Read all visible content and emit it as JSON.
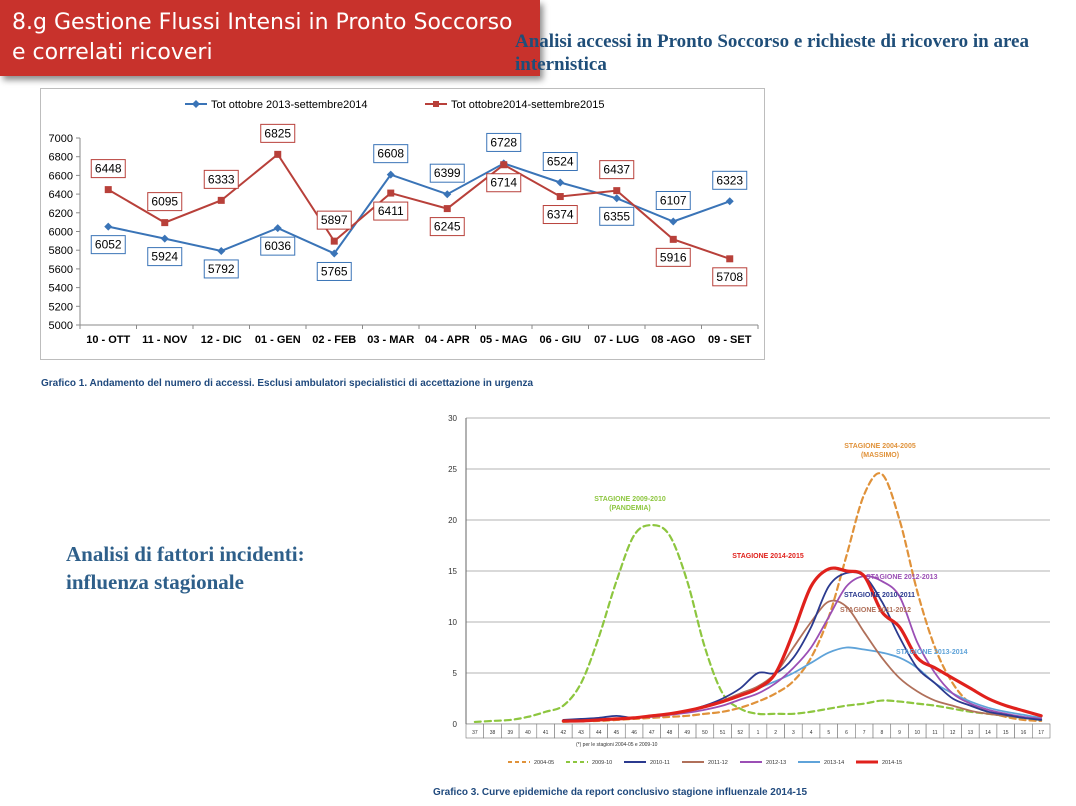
{
  "header": {
    "title_line1": "8.g Gestione Flussi Intensi in Pronto Soccorso",
    "title_line2": "e correlati ricoveri"
  },
  "subtitle": "Analisi accessi in Pronto Soccorso e richieste di ricovero in area internistica",
  "side_text": {
    "line1": "Analisi di fattori incidenti:",
    "line2": "influenza stagionale"
  },
  "chart_data": [
    {
      "type": "line",
      "categories": [
        "10 - OTT",
        "11 - NOV",
        "12 - DIC",
        "01 - GEN",
        "02 - FEB",
        "03 - MAR",
        "04 - APR",
        "05 - MAG",
        "06 - GIU",
        "07 - LUG",
        "08 -AGO",
        "09 - SET"
      ],
      "ylim": [
        5000,
        7000
      ],
      "yticks": [
        5000,
        5200,
        5400,
        5600,
        5800,
        6000,
        6200,
        6400,
        6600,
        6800,
        7000
      ],
      "legend_position": "top",
      "grid": false,
      "series": [
        {
          "name": "Tot ottobre 2013-settembre2014",
          "color": "#3a74b7",
          "marker": "diamond",
          "values": [
            6052,
            5924,
            5792,
            6036,
            5765,
            6608,
            6399,
            6728,
            6524,
            6355,
            6107,
            6323
          ]
        },
        {
          "name": "Tot ottobre2014-settembre2015",
          "color": "#b8403a",
          "marker": "square",
          "values": [
            6448,
            6095,
            6333,
            6825,
            5897,
            6411,
            6245,
            6714,
            6374,
            6437,
            5916,
            5708
          ]
        }
      ],
      "caption": "Grafico 1. Andamento del numero di accessi. Esclusi ambulatori specialistici di accettazione in urgenza"
    },
    {
      "type": "line",
      "weeks": [
        "37",
        "38",
        "39",
        "40",
        "41",
        "42",
        "43",
        "44",
        "45",
        "46",
        "47",
        "48",
        "49",
        "50",
        "51",
        "52",
        "1",
        "2",
        "3",
        "4",
        "5",
        "6",
        "7",
        "8",
        "9",
        "10",
        "11",
        "12",
        "13",
        "14",
        "15",
        "16",
        "17"
      ],
      "ylim": [
        0,
        30
      ],
      "yticks": [
        0,
        5,
        10,
        15,
        20,
        25,
        30
      ],
      "grid": true,
      "axis_note": "(*) per le stagioni 2004-05 e 2009-10",
      "legend_position": "bottom",
      "annotations": [
        {
          "text": "STAGIONE 2004-2005",
          "sub": "(MASSIMO)",
          "color": "#e0923a"
        },
        {
          "text": "STAGIONE 2009-2010",
          "sub": "(PANDEMIA)",
          "color": "#8dc63f"
        },
        {
          "text": "STAGIONE 2014-2015",
          "color": "#e0211c"
        },
        {
          "text": "STAGIONE 2012-2013",
          "color": "#9b4fb5"
        },
        {
          "text": "STAGIONE 2010-2011",
          "color": "#2b3a8f"
        },
        {
          "text": "STAGIONE 2011-2012",
          "color": "#b0705a"
        },
        {
          "text": "STAGIONE 2013-2014",
          "color": "#5fa3d9"
        }
      ],
      "series": [
        {
          "name": "2004-05",
          "color": "#e0923a",
          "dash": true,
          "values": [
            null,
            null,
            null,
            null,
            null,
            0.2,
            0.3,
            0.3,
            0.4,
            0.5,
            0.6,
            0.7,
            0.8,
            1.0,
            1.2,
            1.6,
            2.2,
            3.0,
            4.2,
            6.5,
            10.5,
            16.5,
            22.5,
            24.5,
            20.0,
            13.0,
            7.5,
            4.0,
            2.0,
            1.2,
            0.7,
            0.4,
            0.3
          ]
        },
        {
          "name": "2009-10",
          "color": "#8dc63f",
          "dash": true,
          "values": [
            0.2,
            0.3,
            0.4,
            0.7,
            1.2,
            1.8,
            4.0,
            8.5,
            14.0,
            18.5,
            19.5,
            18.5,
            14.0,
            7.5,
            3.0,
            1.5,
            1.0,
            1.0,
            1.0,
            1.2,
            1.5,
            1.8,
            2.0,
            2.3,
            2.2,
            2.0,
            1.8,
            1.5,
            1.2,
            1.0,
            0.8,
            0.6,
            0.4
          ]
        },
        {
          "name": "2010-11",
          "color": "#2b3a8f",
          "dash": false,
          "values": [
            null,
            null,
            null,
            null,
            null,
            0.4,
            0.5,
            0.6,
            0.8,
            0.6,
            0.8,
            1.0,
            1.3,
            1.8,
            2.5,
            3.5,
            5.0,
            5.0,
            6.5,
            9.5,
            13.5,
            14.8,
            14.5,
            12.0,
            8.5,
            5.5,
            4.0,
            2.5,
            1.8,
            1.2,
            0.9,
            0.6,
            0.4
          ]
        },
        {
          "name": "2011-12",
          "color": "#b0705a",
          "dash": false,
          "values": [
            null,
            null,
            null,
            null,
            null,
            0.3,
            0.3,
            0.4,
            0.5,
            0.6,
            0.8,
            1.0,
            1.3,
            1.7,
            2.3,
            3.0,
            3.7,
            5.0,
            7.5,
            10.0,
            12.0,
            11.5,
            9.0,
            6.5,
            4.5,
            3.2,
            2.3,
            1.8,
            1.3,
            1.0,
            0.8,
            0.6,
            0.4
          ]
        },
        {
          "name": "2012-13",
          "color": "#9b4fb5",
          "dash": false,
          "values": [
            null,
            null,
            null,
            null,
            null,
            0.3,
            0.3,
            0.4,
            0.5,
            0.6,
            0.7,
            0.9,
            1.1,
            1.4,
            1.8,
            2.4,
            3.0,
            4.0,
            5.5,
            7.5,
            10.5,
            13.5,
            14.5,
            14.0,
            12.5,
            8.0,
            5.0,
            3.0,
            2.0,
            1.4,
            1.0,
            0.7,
            0.5
          ]
        },
        {
          "name": "2013-14",
          "color": "#5fa3d9",
          "dash": false,
          "values": [
            null,
            null,
            null,
            null,
            null,
            0.3,
            0.3,
            0.4,
            0.5,
            0.6,
            0.8,
            1.0,
            1.3,
            1.7,
            2.2,
            2.8,
            3.5,
            4.2,
            5.0,
            6.0,
            7.0,
            7.5,
            7.3,
            7.0,
            6.5,
            5.5,
            4.0,
            3.0,
            2.2,
            1.6,
            1.2,
            0.9,
            0.6
          ]
        },
        {
          "name": "2014-15",
          "color": "#e0211c",
          "dash": false,
          "values": [
            null,
            null,
            null,
            null,
            null,
            0.3,
            0.3,
            0.4,
            0.5,
            0.6,
            0.8,
            1.0,
            1.3,
            1.7,
            2.2,
            2.8,
            3.5,
            5.0,
            9.0,
            13.5,
            15.2,
            15.0,
            14.5,
            11.0,
            9.5,
            6.5,
            5.5,
            4.5,
            3.5,
            2.5,
            1.8,
            1.3,
            0.8
          ]
        }
      ],
      "caption": "Grafico 3. Curve epidemiche da report conclusivo stagione influenzale 2014-15"
    }
  ]
}
